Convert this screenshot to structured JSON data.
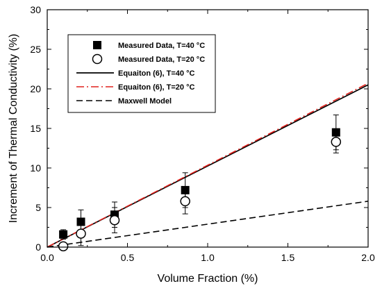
{
  "chart_data": {
    "type": "scatter",
    "xlabel": "Volume Fraction (%)",
    "ylabel": "Increment of Thermal Conductivity (%)",
    "xlim": [
      0.0,
      2.0
    ],
    "ylim": [
      0,
      30
    ],
    "xticks": [
      0.0,
      0.5,
      1.0,
      1.5,
      2.0
    ],
    "xtick_labels": [
      "0.0",
      "0.5",
      "1.0",
      "1.5",
      "2.0"
    ],
    "yticks": [
      0,
      5,
      10,
      15,
      20,
      25,
      30
    ],
    "ytick_labels": [
      "0",
      "5",
      "10",
      "15",
      "20",
      "25",
      "30"
    ],
    "grid": false,
    "legend_position": "top-left",
    "series": [
      {
        "name": "Measured Data, T=40 °C",
        "kind": "marker",
        "marker": "filled-square",
        "color": "#000000",
        "x": [
          0.1,
          0.21,
          0.42,
          0.86,
          1.8
        ],
        "y": [
          1.6,
          3.2,
          4.1,
          7.2,
          14.5
        ],
        "err_low": [
          0.6,
          1.5,
          1.6,
          2.2,
          2.2
        ],
        "err_high": [
          0.6,
          1.5,
          1.6,
          2.2,
          2.2
        ]
      },
      {
        "name": "Measured Data, T=20 °C",
        "kind": "marker",
        "marker": "open-circle",
        "color": "#000000",
        "x": [
          0.1,
          0.21,
          0.42,
          0.86,
          1.8
        ],
        "y": [
          0.1,
          1.7,
          3.4,
          5.8,
          13.3
        ],
        "err_low": [
          0.4,
          1.5,
          1.6,
          1.6,
          1.4
        ],
        "err_high": [
          0.4,
          1.5,
          1.6,
          1.6,
          1.4
        ]
      },
      {
        "name": "Equaiton (6), T=40 °C",
        "kind": "line",
        "line_style": "solid",
        "color": "#000000",
        "x": [
          0.0,
          2.0
        ],
        "y": [
          0.0,
          20.5
        ]
      },
      {
        "name": "Equaiton (6), T=20 °C",
        "kind": "line",
        "line_style": "dash-dot",
        "color": "#e0201b",
        "x": [
          0.0,
          2.0
        ],
        "y": [
          0.0,
          20.7
        ]
      },
      {
        "name": "Maxwell Model",
        "kind": "line",
        "line_style": "dashed",
        "color": "#000000",
        "x": [
          0.0,
          2.0
        ],
        "y": [
          0.0,
          5.8
        ]
      }
    ]
  }
}
